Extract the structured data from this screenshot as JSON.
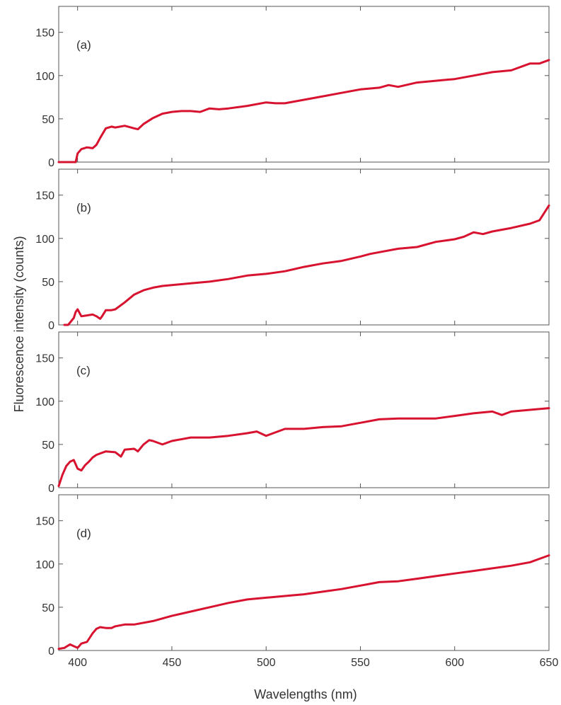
{
  "chart_data": {
    "type": "line",
    "xlabel": "Wavelengths (nm)",
    "ylabel": "Fluorescence intensity (counts)",
    "xlim": [
      390,
      650
    ],
    "ylim": [
      0,
      180
    ],
    "xticks": [
      400,
      450,
      500,
      550,
      600,
      650
    ],
    "yticks": [
      0,
      50,
      100,
      150
    ],
    "grid": false,
    "line_color": "#d7132f",
    "panels": [
      {
        "label": "(a)",
        "x": [
          390,
          398,
          399,
          400,
          402,
          405,
          408,
          410,
          412,
          415,
          418,
          420,
          425,
          430,
          432,
          435,
          440,
          445,
          450,
          455,
          460,
          465,
          470,
          475,
          480,
          490,
          500,
          505,
          510,
          520,
          530,
          540,
          550,
          560,
          565,
          570,
          580,
          590,
          600,
          610,
          620,
          630,
          640,
          645,
          650
        ],
        "y": [
          0,
          0,
          0,
          10,
          15,
          17,
          16,
          20,
          28,
          39,
          41,
          40,
          42,
          39,
          38,
          44,
          51,
          56,
          58,
          59,
          59,
          58,
          62,
          61,
          62,
          65,
          69,
          68,
          68,
          72,
          76,
          80,
          84,
          86,
          89,
          87,
          92,
          94,
          96,
          100,
          104,
          106,
          114,
          114,
          118
        ]
      },
      {
        "label": "(b)",
        "x": [
          393,
          395,
          398,
          399,
          400,
          402,
          405,
          408,
          410,
          412,
          413,
          415,
          418,
          420,
          425,
          430,
          435,
          440,
          445,
          450,
          460,
          470,
          480,
          490,
          500,
          510,
          520,
          530,
          540,
          550,
          555,
          560,
          570,
          580,
          590,
          600,
          605,
          610,
          615,
          620,
          630,
          640,
          645,
          650
        ],
        "y": [
          0,
          0,
          8,
          15,
          18,
          10,
          11,
          12,
          10,
          7,
          10,
          17,
          17,
          18,
          26,
          35,
          40,
          43,
          45,
          46,
          48,
          50,
          53,
          57,
          59,
          62,
          67,
          71,
          74,
          79,
          82,
          84,
          88,
          90,
          96,
          99,
          102,
          107,
          105,
          108,
          112,
          117,
          121,
          138
        ]
      },
      {
        "label": "(c)",
        "x": [
          390,
          392,
          394,
          396,
          398,
          400,
          402,
          404,
          406,
          408,
          410,
          415,
          420,
          423,
          425,
          430,
          432,
          435,
          438,
          440,
          445,
          450,
          460,
          470,
          480,
          490,
          495,
          500,
          510,
          520,
          530,
          540,
          550,
          560,
          570,
          580,
          590,
          600,
          610,
          620,
          625,
          630,
          640,
          650
        ],
        "y": [
          2,
          15,
          25,
          30,
          32,
          22,
          20,
          26,
          30,
          35,
          38,
          42,
          41,
          36,
          44,
          45,
          42,
          50,
          55,
          54,
          50,
          54,
          58,
          58,
          60,
          63,
          65,
          60,
          68,
          68,
          70,
          71,
          75,
          79,
          80,
          80,
          80,
          83,
          86,
          88,
          84,
          88,
          90,
          92
        ]
      },
      {
        "label": "(d)",
        "x": [
          390,
          393,
          396,
          398,
          400,
          402,
          405,
          408,
          410,
          412,
          415,
          418,
          420,
          425,
          430,
          440,
          450,
          460,
          470,
          480,
          490,
          500,
          510,
          520,
          530,
          540,
          550,
          555,
          560,
          570,
          580,
          590,
          600,
          610,
          620,
          630,
          640,
          650
        ],
        "y": [
          2,
          3,
          7,
          5,
          3,
          8,
          10,
          20,
          25,
          27,
          26,
          26,
          28,
          30,
          30,
          34,
          40,
          45,
          50,
          55,
          59,
          61,
          63,
          65,
          68,
          71,
          75,
          77,
          79,
          80,
          83,
          86,
          89,
          92,
          95,
          98,
          102,
          110
        ]
      }
    ]
  }
}
